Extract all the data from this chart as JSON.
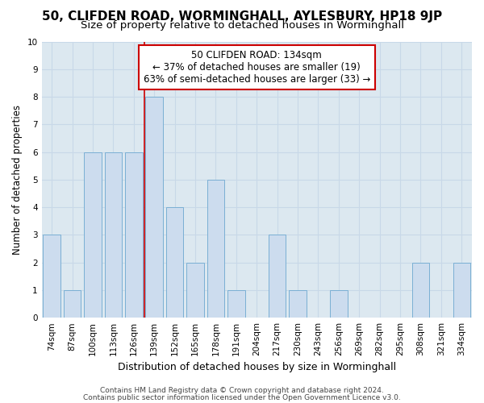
{
  "title1": "50, CLIFDEN ROAD, WORMINGHALL, AYLESBURY, HP18 9JP",
  "title2": "Size of property relative to detached houses in Worminghall",
  "xlabel": "Distribution of detached houses by size in Worminghall",
  "ylabel": "Number of detached properties",
  "categories": [
    "74sqm",
    "87sqm",
    "100sqm",
    "113sqm",
    "126sqm",
    "139sqm",
    "152sqm",
    "165sqm",
    "178sqm",
    "191sqm",
    "204sqm",
    "217sqm",
    "230sqm",
    "243sqm",
    "256sqm",
    "269sqm",
    "282sqm",
    "295sqm",
    "308sqm",
    "321sqm",
    "334sqm"
  ],
  "values": [
    3,
    1,
    6,
    6,
    6,
    8,
    4,
    2,
    5,
    1,
    0,
    3,
    1,
    0,
    1,
    0,
    0,
    0,
    2,
    0,
    2
  ],
  "bar_color": "#ccdcee",
  "bar_edge_color": "#7aafd4",
  "annotation_box_text": "50 CLIFDEN ROAD: 134sqm\n← 37% of detached houses are smaller (19)\n63% of semi-detached houses are larger (33) →",
  "footer1": "Contains HM Land Registry data © Crown copyright and database right 2024.",
  "footer2": "Contains public sector information licensed under the Open Government Licence v3.0.",
  "ylim": [
    0,
    10
  ],
  "yticks": [
    0,
    1,
    2,
    3,
    4,
    5,
    6,
    7,
    8,
    9,
    10
  ],
  "bar_width": 0.85,
  "grid_color": "#c8d8e8",
  "annotation_box_color": "#ffffff",
  "annotation_box_edge": "#cc0000",
  "vline_color": "#cc0000",
  "bg_color": "#dce8f0",
  "title1_fontsize": 11,
  "title2_fontsize": 9.5,
  "xlabel_fontsize": 9,
  "ylabel_fontsize": 8.5,
  "tick_fontsize": 7.5,
  "annot_fontsize": 8.5,
  "footer_fontsize": 6.5
}
